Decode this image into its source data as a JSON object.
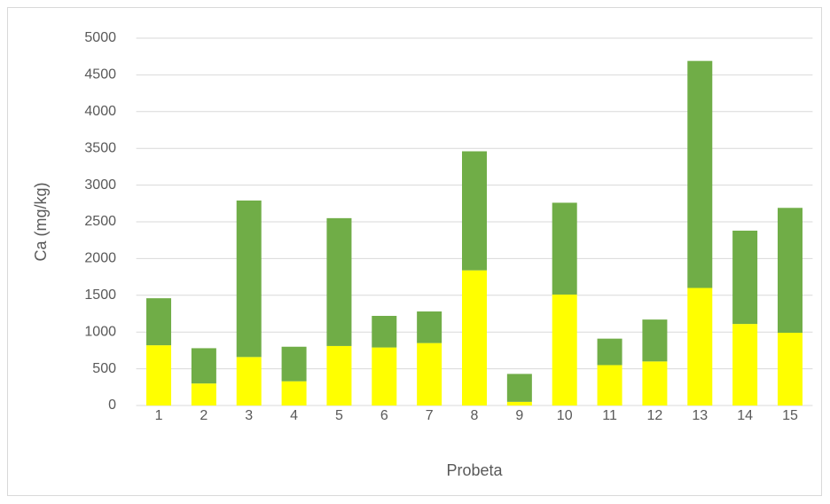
{
  "chart_data": {
    "type": "stacked_bar",
    "x_label": "Probeta",
    "y_label": "Ca (mg/kg)",
    "categories": [
      "1",
      "2",
      "3",
      "4",
      "5",
      "6",
      "7",
      "8",
      "9",
      "10",
      "11",
      "12",
      "13",
      "14",
      "15"
    ],
    "series": [
      {
        "color": "#ffff00",
        "values": [
          820,
          300,
          660,
          330,
          810,
          790,
          850,
          1840,
          50,
          1510,
          550,
          600,
          1600,
          1110,
          990
        ]
      },
      {
        "color": "#70ad47",
        "values": [
          640,
          480,
          2130,
          470,
          1740,
          430,
          430,
          1620,
          380,
          1250,
          360,
          570,
          3090,
          1270,
          1700
        ]
      }
    ],
    "ylim": [
      0,
      5000
    ],
    "yticks": [
      0,
      500,
      1000,
      1500,
      2000,
      2500,
      3000,
      3500,
      4000,
      4500,
      5000
    ],
    "grid": true
  }
}
